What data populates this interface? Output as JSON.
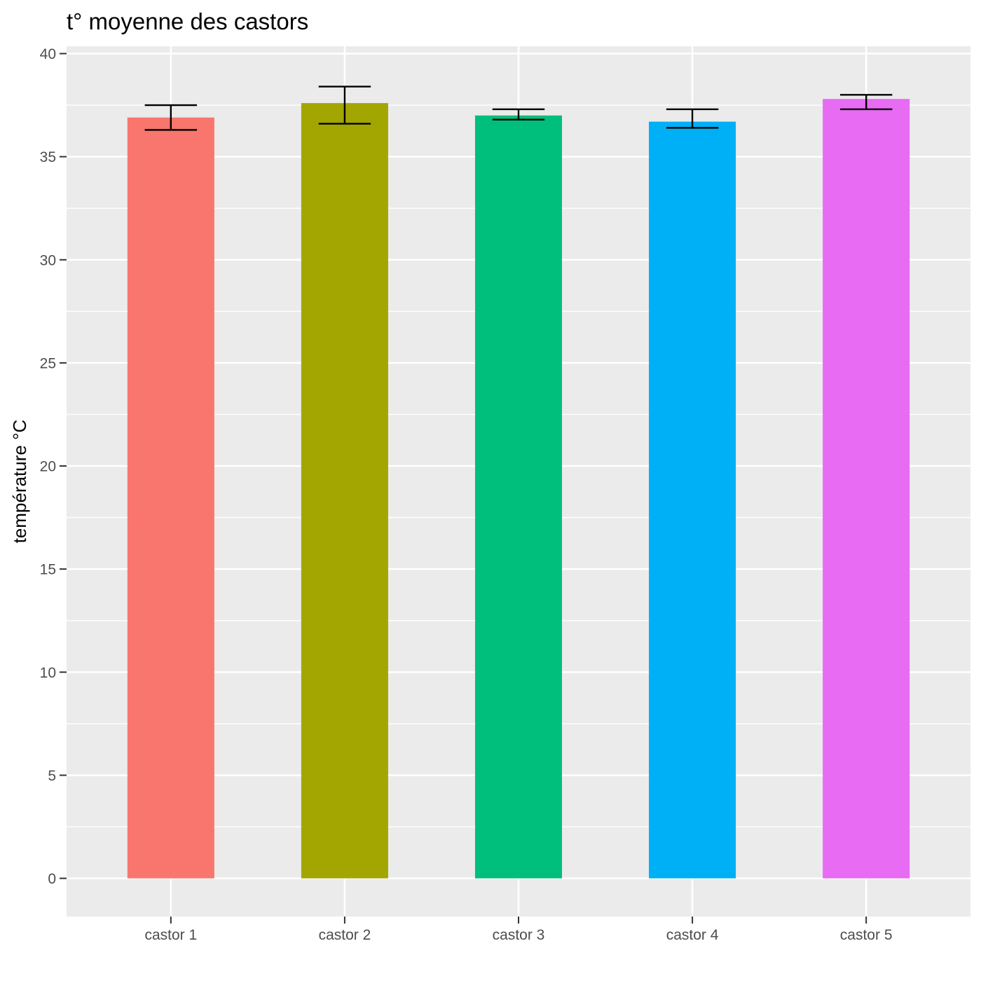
{
  "chart_data": {
    "type": "bar",
    "title": "t° moyenne des castors",
    "xlabel": "",
    "ylabel": "température °C",
    "categories": [
      "castor 1",
      "castor 2",
      "castor 3",
      "castor 4",
      "castor 5"
    ],
    "values": [
      36.9,
      37.6,
      37.0,
      36.7,
      37.8
    ],
    "error_low": [
      36.3,
      36.6,
      36.8,
      36.4,
      37.3
    ],
    "error_high": [
      37.5,
      38.4,
      37.3,
      37.3,
      38.0
    ],
    "colors": [
      "#F8766D",
      "#A3A500",
      "#00BF7D",
      "#00B0F6",
      "#E76BF3"
    ],
    "ylim": [
      -1.9,
      40.3
    ],
    "yticks": [
      0,
      5,
      10,
      15,
      20,
      25,
      30,
      35,
      40
    ],
    "ytick_labels": [
      "0",
      "5",
      "10",
      "15",
      "20",
      "25",
      "30",
      "35",
      "40"
    ],
    "grid": true,
    "legend": "none"
  }
}
